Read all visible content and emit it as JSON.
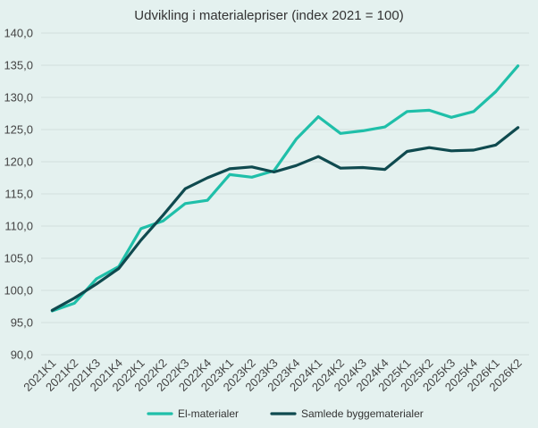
{
  "chart_data": {
    "type": "line",
    "title": "Udvikling i materialepriser (index 2021 = 100)",
    "xlabel": "",
    "ylabel": "",
    "categories": [
      "2021K1",
      "2021K2",
      "2021K3",
      "2021K4",
      "2022K1",
      "2022K2",
      "2022K3",
      "2022K4",
      "2023K1",
      "2023K2",
      "2023K3",
      "2023K4",
      "2024K1",
      "2024K2",
      "2024K3",
      "2024K4",
      "2025K1",
      "2025K2",
      "2025K3",
      "2025K4",
      "2026K1",
      "2026K2"
    ],
    "ylim": [
      90,
      140
    ],
    "yticks": [
      "90,0",
      "95,0",
      "100,0",
      "105,0",
      "110,0",
      "115,0",
      "120,0",
      "125,0",
      "130,0",
      "135,0",
      "140,0"
    ],
    "grid": true,
    "legend_position": "bottom",
    "series": [
      {
        "name": "El-materialer",
        "color": "#1fbfa9",
        "values": [
          96.8,
          98.0,
          101.8,
          103.7,
          109.6,
          110.8,
          113.5,
          114.0,
          118.0,
          117.6,
          118.6,
          123.5,
          127.0,
          124.4,
          124.8,
          125.4,
          127.8,
          128.0,
          126.9,
          127.8,
          130.9,
          134.9
        ]
      },
      {
        "name": "Samlede byggematerialer",
        "color": "#0f4a4f",
        "values": [
          96.9,
          98.8,
          101.0,
          103.4,
          107.8,
          111.7,
          115.8,
          117.5,
          118.9,
          119.2,
          118.4,
          119.4,
          120.8,
          119.0,
          119.1,
          118.8,
          121.6,
          122.2,
          121.7,
          121.8,
          122.6,
          125.3
        ]
      }
    ]
  }
}
